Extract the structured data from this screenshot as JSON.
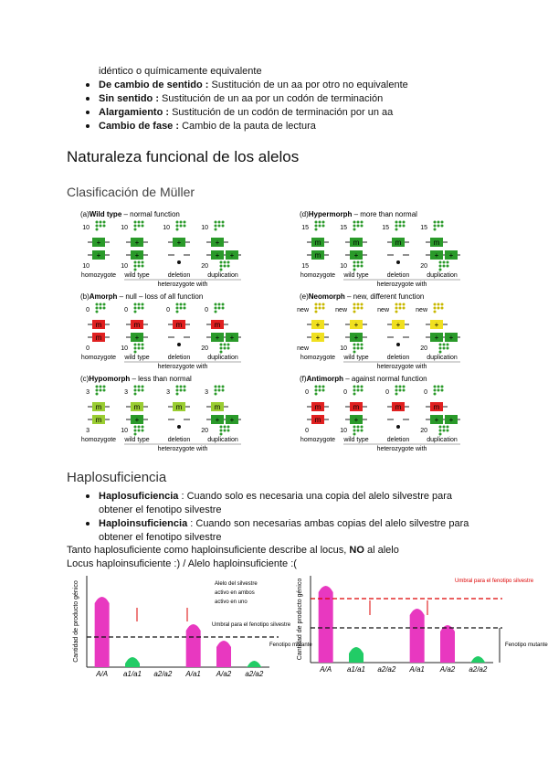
{
  "top": {
    "continuation": "idéntico o químicamente equivalente",
    "bullets": [
      {
        "term": "De cambio de sentido :",
        "text": " Sustitución de un aa por otro no equivalente"
      },
      {
        "term": "Sin sentido :",
        "text": " Sustitución de un aa por un codón de terminación"
      },
      {
        "term": "Alargamiento :",
        "text": " Sustitución de un codón de terminación por un aa"
      },
      {
        "term": "Cambio de fase :",
        "text": " Cambio de la pauta de lectura"
      }
    ]
  },
  "heading": "Naturaleza funcional de los alelos",
  "subheading": "Clasificación de Müller",
  "figure": {
    "heterozygote_label": "heterozygote with",
    "wild_letter": "+",
    "columns": [
      "homozygote",
      "wild type",
      "deletion",
      "duplication"
    ],
    "panels": [
      {
        "label": "(a)",
        "name": "Wild type",
        "desc": " – normal function",
        "letter": "+",
        "color": "#2a9a2a",
        "numbers": [
          [
            10,
            10
          ],
          [
            10,
            10
          ],
          [
            10
          ],
          [
            10,
            20
          ]
        ]
      },
      {
        "label": "(b)",
        "name": "Amorph",
        "desc": " – null – loss of all function",
        "letter": "m",
        "color": "#e02020",
        "numbers": [
          [
            0,
            0
          ],
          [
            0,
            10
          ],
          [
            0
          ],
          [
            0,
            20
          ]
        ]
      },
      {
        "label": "(c)",
        "name": "Hypomorph",
        "desc": " – less than normal",
        "letter": "m",
        "color": "#9acd32",
        "numbers": [
          [
            3,
            3
          ],
          [
            3,
            10
          ],
          [
            3
          ],
          [
            3,
            20
          ]
        ]
      },
      {
        "label": "(d)",
        "name": "Hypermorph",
        "desc": " – more than normal",
        "letter": "m",
        "color": "#2a9a2a",
        "numbers": [
          [
            15,
            15
          ],
          [
            15,
            10
          ],
          [
            15
          ],
          [
            15,
            20
          ]
        ]
      },
      {
        "label": "(e)",
        "name": "Neomorph",
        "desc": " – new, different function",
        "letter": "+",
        "color": "#f0e020",
        "numbers": [
          [
            "new",
            "new"
          ],
          [
            "new",
            10
          ],
          [
            "new"
          ],
          [
            "new",
            20
          ]
        ]
      },
      {
        "label": "(f)",
        "name": "Antimorph",
        "desc": " – against normal function",
        "letter": "m",
        "color": "#e02020",
        "numbers": [
          [
            0,
            0
          ],
          [
            0,
            10
          ],
          [
            0
          ],
          [
            0,
            20
          ]
        ]
      }
    ]
  },
  "section": "Haplosuficiencia",
  "bullets": [
    {
      "term": "Haplosuficiencia",
      "text": " : Cuando solo  es necesaria una copia del alelo silvestre para",
      "cont": "obtener el fenotipo silvestre"
    },
    {
      "term": "Haploinsuficiencia",
      "text": " : Cuando son necesarias ambas copias del alelo silvestre para",
      "cont": "obtener el fenotipo silvestre"
    }
  ],
  "line1": {
    "a": "Tanto haplosuficiente como haploinsuficiente describe al locus, ",
    "b": "NO",
    "c": " al alelo"
  },
  "line2": "Locus haploinsuficiente :) / Alelo haploinsuficiente :(",
  "graphs": [
    {
      "y_label": "Cantidad de producto génico",
      "x_labels": [
        "A/A",
        "a1/a1",
        "a2/a2",
        "A/a1",
        "A/a2",
        "a2/a2"
      ],
      "notes": [
        "Alelo del silvestre",
        "activo en ambos",
        "activo en uno"
      ],
      "threshold": "Umbral para el fenotipo silvestre",
      "mutant": "Fenotipo mutante"
    },
    {
      "y_label": "Cantidad de producto génico",
      "x_labels": [
        "A/A",
        "a1/a1",
        "a2/a2",
        "A/a1",
        "A/a2",
        "a2/a2"
      ],
      "threshold": "Umbral para el fenotipo silvestre",
      "mutant": "Fenotipo mutante"
    }
  ]
}
